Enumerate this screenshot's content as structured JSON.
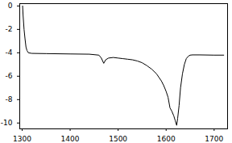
{
  "chart_data": {
    "type": "line",
    "x": [
      1301,
      1302,
      1304,
      1306,
      1308,
      1310,
      1313,
      1320,
      1350,
      1400,
      1440,
      1460,
      1465,
      1470,
      1474,
      1480,
      1490,
      1500,
      1510,
      1520,
      1530,
      1540,
      1550,
      1560,
      1570,
      1580,
      1590,
      1595,
      1600,
      1604,
      1608,
      1612,
      1616,
      1619,
      1622,
      1624,
      1627,
      1630,
      1634,
      1638,
      1642,
      1646,
      1650,
      1655,
      1670,
      1700,
      1720
    ],
    "values": [
      0,
      -0.8,
      -2.0,
      -2.8,
      -3.5,
      -3.8,
      -4.0,
      -4.05,
      -4.07,
      -4.1,
      -4.12,
      -4.2,
      -4.45,
      -4.9,
      -4.6,
      -4.45,
      -4.4,
      -4.45,
      -4.5,
      -4.55,
      -4.6,
      -4.7,
      -4.85,
      -5.1,
      -5.4,
      -5.8,
      -6.4,
      -6.8,
      -7.3,
      -7.8,
      -8.7,
      -9.0,
      -9.4,
      -9.8,
      -10.2,
      -9.6,
      -8.5,
      -7.0,
      -5.8,
      -5.0,
      -4.5,
      -4.3,
      -4.2,
      -4.18,
      -4.18,
      -4.2,
      -4.2
    ],
    "color": "#000000",
    "xlim": [
      1295,
      1728
    ],
    "ylim": [
      -10.5,
      0.2
    ],
    "xticks": [
      1300,
      1400,
      1500,
      1600,
      1700
    ],
    "yticks": [
      0,
      -2,
      -4,
      -6,
      -8,
      -10
    ],
    "grid": false
  }
}
